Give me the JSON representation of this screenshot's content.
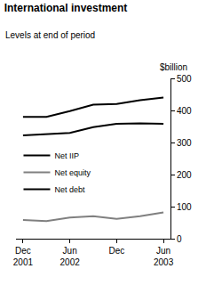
{
  "chart_data": {
    "type": "line",
    "title": "International investment",
    "subtitle": "Levels at end of period",
    "y_label": "$billion",
    "categories": [
      "Dec 2001",
      null,
      "Jun 2002",
      null,
      "Dec",
      null,
      "Jun 2003"
    ],
    "series": [
      {
        "name": "Net IIP",
        "color": "#000000",
        "values": [
          380,
          380,
          398,
          418,
          420,
          432,
          440
        ]
      },
      {
        "name": "Net equity",
        "color": "#808080",
        "values": [
          58,
          55,
          66,
          70,
          62,
          70,
          82
        ]
      },
      {
        "name": "Net debt",
        "color": "#000000",
        "values": [
          322,
          325,
          330,
          348,
          358,
          360,
          358
        ]
      }
    ],
    "ylim": [
      0,
      500
    ],
    "yticks": [
      0,
      100,
      200,
      300,
      400,
      500
    ],
    "grid": false,
    "legend": "left"
  }
}
